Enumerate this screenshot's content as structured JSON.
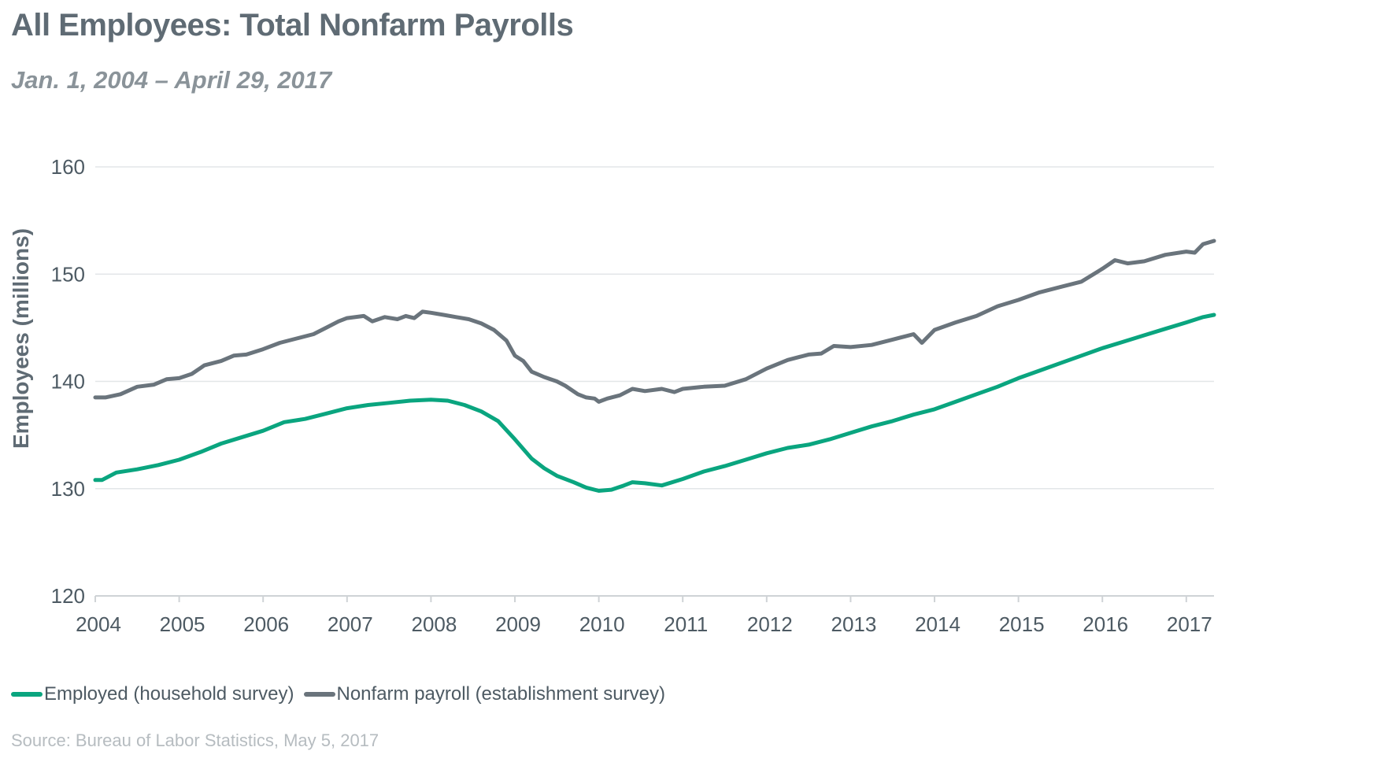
{
  "title": "All Employees: Total Nonfarm Payrolls",
  "subtitle": "Jan. 1, 2004 – April 29, 2017",
  "source": "Source: Bureau of Labor Statistics, May 5, 2017",
  "colors": {
    "employed": "#0aa57f",
    "nonfarm": "#6a747c",
    "grid": "#e3e6e8",
    "axis": "#cfd3d6",
    "text": "#4d5a63"
  },
  "chart_data": {
    "type": "line",
    "title": "All Employees: Total Nonfarm Payrolls",
    "xlabel": "",
    "ylabel": "Employees (millions)",
    "xlim": [
      2004,
      2017.33
    ],
    "ylim": [
      120,
      160
    ],
    "yticks": [
      120,
      130,
      140,
      150,
      160
    ],
    "xticks": [
      2004,
      2005,
      2006,
      2007,
      2008,
      2009,
      2010,
      2011,
      2012,
      2013,
      2014,
      2015,
      2016,
      2017
    ],
    "grid": true,
    "legend_position": "bottom-left",
    "series": [
      {
        "name": "Employed (household survey)",
        "points": [
          [
            2004.0,
            130.8
          ],
          [
            2004.08,
            130.8
          ],
          [
            2004.25,
            131.5
          ],
          [
            2004.5,
            131.8
          ],
          [
            2004.75,
            132.2
          ],
          [
            2005.0,
            132.7
          ],
          [
            2005.25,
            133.4
          ],
          [
            2005.5,
            134.2
          ],
          [
            2005.75,
            134.8
          ],
          [
            2006.0,
            135.4
          ],
          [
            2006.25,
            136.2
          ],
          [
            2006.5,
            136.5
          ],
          [
            2006.75,
            137.0
          ],
          [
            2007.0,
            137.5
          ],
          [
            2007.25,
            137.8
          ],
          [
            2007.5,
            138.0
          ],
          [
            2007.75,
            138.2
          ],
          [
            2008.0,
            138.3
          ],
          [
            2008.2,
            138.2
          ],
          [
            2008.4,
            137.8
          ],
          [
            2008.6,
            137.2
          ],
          [
            2008.8,
            136.3
          ],
          [
            2009.0,
            134.6
          ],
          [
            2009.2,
            132.8
          ],
          [
            2009.35,
            131.9
          ],
          [
            2009.5,
            131.2
          ],
          [
            2009.7,
            130.6
          ],
          [
            2009.85,
            130.1
          ],
          [
            2010.0,
            129.8
          ],
          [
            2010.15,
            129.9
          ],
          [
            2010.3,
            130.3
          ],
          [
            2010.4,
            130.6
          ],
          [
            2010.55,
            130.5
          ],
          [
            2010.75,
            130.3
          ],
          [
            2011.0,
            130.9
          ],
          [
            2011.25,
            131.6
          ],
          [
            2011.5,
            132.1
          ],
          [
            2011.75,
            132.7
          ],
          [
            2012.0,
            133.3
          ],
          [
            2012.25,
            133.8
          ],
          [
            2012.5,
            134.1
          ],
          [
            2012.75,
            134.6
          ],
          [
            2013.0,
            135.2
          ],
          [
            2013.25,
            135.8
          ],
          [
            2013.5,
            136.3
          ],
          [
            2013.75,
            136.9
          ],
          [
            2014.0,
            137.4
          ],
          [
            2014.25,
            138.1
          ],
          [
            2014.5,
            138.8
          ],
          [
            2014.75,
            139.5
          ],
          [
            2015.0,
            140.3
          ],
          [
            2015.25,
            141.0
          ],
          [
            2015.5,
            141.7
          ],
          [
            2015.75,
            142.4
          ],
          [
            2016.0,
            143.1
          ],
          [
            2016.25,
            143.7
          ],
          [
            2016.5,
            144.3
          ],
          [
            2016.75,
            144.9
          ],
          [
            2017.0,
            145.5
          ],
          [
            2017.2,
            146.0
          ],
          [
            2017.33,
            146.2
          ]
        ]
      },
      {
        "name": "Nonfarm payroll (establishment survey)",
        "points": [
          [
            2004.0,
            138.5
          ],
          [
            2004.12,
            138.5
          ],
          [
            2004.3,
            138.8
          ],
          [
            2004.5,
            139.5
          ],
          [
            2004.7,
            139.7
          ],
          [
            2004.85,
            140.2
          ],
          [
            2005.0,
            140.3
          ],
          [
            2005.15,
            140.7
          ],
          [
            2005.3,
            141.5
          ],
          [
            2005.5,
            141.9
          ],
          [
            2005.65,
            142.4
          ],
          [
            2005.8,
            142.5
          ],
          [
            2006.0,
            143.0
          ],
          [
            2006.2,
            143.6
          ],
          [
            2006.4,
            144.0
          ],
          [
            2006.6,
            144.4
          ],
          [
            2006.75,
            145.0
          ],
          [
            2006.9,
            145.6
          ],
          [
            2007.0,
            145.9
          ],
          [
            2007.2,
            146.1
          ],
          [
            2007.3,
            145.6
          ],
          [
            2007.45,
            146.0
          ],
          [
            2007.6,
            145.8
          ],
          [
            2007.7,
            146.1
          ],
          [
            2007.8,
            145.9
          ],
          [
            2007.9,
            146.5
          ],
          [
            2008.0,
            146.4
          ],
          [
            2008.15,
            146.2
          ],
          [
            2008.3,
            146.0
          ],
          [
            2008.45,
            145.8
          ],
          [
            2008.6,
            145.4
          ],
          [
            2008.75,
            144.8
          ],
          [
            2008.9,
            143.8
          ],
          [
            2009.0,
            142.4
          ],
          [
            2009.1,
            141.9
          ],
          [
            2009.2,
            140.9
          ],
          [
            2009.35,
            140.4
          ],
          [
            2009.5,
            140.0
          ],
          [
            2009.6,
            139.6
          ],
          [
            2009.75,
            138.8
          ],
          [
            2009.85,
            138.5
          ],
          [
            2009.95,
            138.4
          ],
          [
            2010.0,
            138.1
          ],
          [
            2010.1,
            138.4
          ],
          [
            2010.25,
            138.7
          ],
          [
            2010.4,
            139.3
          ],
          [
            2010.55,
            139.1
          ],
          [
            2010.75,
            139.3
          ],
          [
            2010.9,
            139.0
          ],
          [
            2011.0,
            139.3
          ],
          [
            2011.25,
            139.5
          ],
          [
            2011.5,
            139.6
          ],
          [
            2011.75,
            140.2
          ],
          [
            2012.0,
            141.2
          ],
          [
            2012.25,
            142.0
          ],
          [
            2012.5,
            142.5
          ],
          [
            2012.65,
            142.6
          ],
          [
            2012.8,
            143.3
          ],
          [
            2013.0,
            143.2
          ],
          [
            2013.25,
            143.4
          ],
          [
            2013.5,
            143.9
          ],
          [
            2013.65,
            144.2
          ],
          [
            2013.75,
            144.4
          ],
          [
            2013.85,
            143.6
          ],
          [
            2014.0,
            144.8
          ],
          [
            2014.25,
            145.5
          ],
          [
            2014.5,
            146.1
          ],
          [
            2014.75,
            147.0
          ],
          [
            2015.0,
            147.6
          ],
          [
            2015.25,
            148.3
          ],
          [
            2015.5,
            148.8
          ],
          [
            2015.75,
            149.3
          ],
          [
            2016.0,
            150.5
          ],
          [
            2016.15,
            151.3
          ],
          [
            2016.3,
            151.0
          ],
          [
            2016.5,
            151.2
          ],
          [
            2016.75,
            151.8
          ],
          [
            2017.0,
            152.1
          ],
          [
            2017.1,
            152.0
          ],
          [
            2017.2,
            152.8
          ],
          [
            2017.33,
            153.1
          ]
        ]
      }
    ]
  }
}
